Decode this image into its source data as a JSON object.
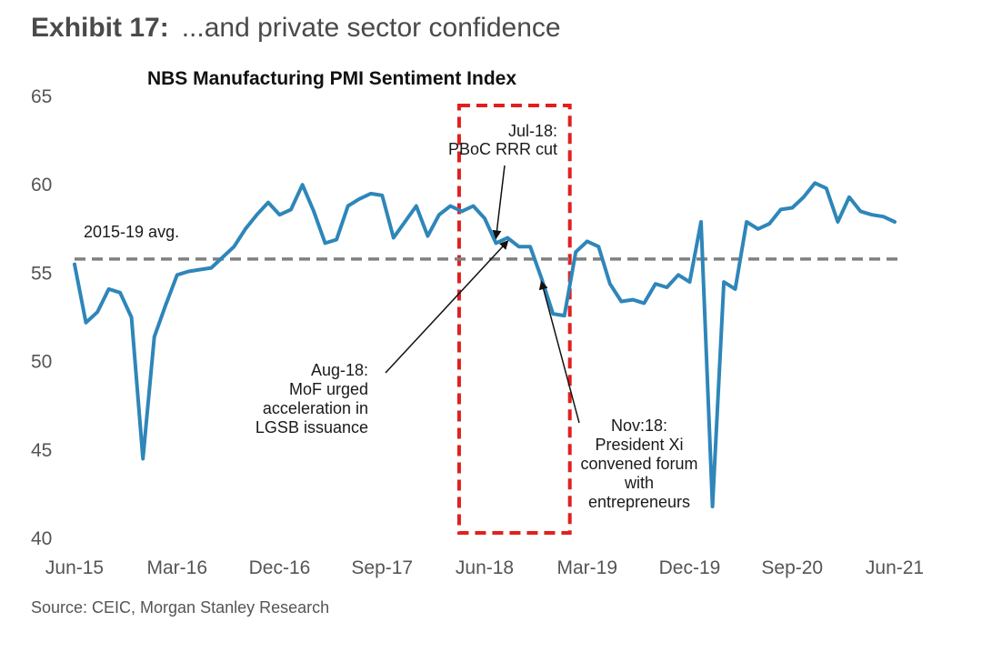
{
  "header": {
    "exhibit_label": "Exhibit 17:",
    "exhibit_title": "...and private sector confidence"
  },
  "source": "Source: CEIC, Morgan Stanley Research",
  "chart_data": {
    "type": "line",
    "title": "NBS Manufacturing PMI Sentiment Index",
    "xlabel": "",
    "ylabel": "",
    "ylim": [
      40,
      65
    ],
    "yticks": [
      40,
      45,
      50,
      55,
      60,
      65
    ],
    "xticks": [
      "Jun-15",
      "Mar-16",
      "Dec-16",
      "Sep-17",
      "Jun-18",
      "Mar-19",
      "Dec-19",
      "Sep-20",
      "Jun-21"
    ],
    "grid": false,
    "x": [
      "Jun-15",
      "Jul-15",
      "Aug-15",
      "Sep-15",
      "Oct-15",
      "Nov-15",
      "Dec-15",
      "Jan-16",
      "Feb-16",
      "Mar-16",
      "Apr-16",
      "May-16",
      "Jun-16",
      "Jul-16",
      "Aug-16",
      "Sep-16",
      "Oct-16",
      "Nov-16",
      "Dec-16",
      "Jan-17",
      "Feb-17",
      "Mar-17",
      "Apr-17",
      "May-17",
      "Jun-17",
      "Jul-17",
      "Aug-17",
      "Sep-17",
      "Oct-17",
      "Nov-17",
      "Dec-17",
      "Jan-18",
      "Feb-18",
      "Mar-18",
      "Apr-18",
      "May-18",
      "Jun-18",
      "Jul-18",
      "Aug-18",
      "Sep-18",
      "Oct-18",
      "Nov-18",
      "Dec-18",
      "Jan-19",
      "Feb-19",
      "Mar-19",
      "Apr-19",
      "May-19",
      "Jun-19",
      "Jul-19",
      "Aug-19",
      "Sep-19",
      "Oct-19",
      "Nov-19",
      "Dec-19",
      "Jan-20",
      "Feb-20",
      "Mar-20",
      "Apr-20",
      "May-20",
      "Jun-20",
      "Jul-20",
      "Aug-20",
      "Sep-20",
      "Oct-20",
      "Nov-20",
      "Dec-20",
      "Jan-21",
      "Feb-21",
      "Mar-21",
      "Apr-21",
      "May-21",
      "Jun-21"
    ],
    "series": [
      {
        "name": "",
        "color": "#2e86b9",
        "values": [
          55.5,
          52.2,
          52.8,
          54.1,
          53.9,
          52.5,
          44.5,
          51.4,
          53.2,
          54.9,
          55.1,
          55.2,
          55.3,
          55.9,
          56.5,
          57.5,
          58.3,
          59.0,
          58.3,
          58.6,
          60.0,
          58.5,
          56.7,
          56.9,
          58.8,
          59.2,
          59.5,
          59.4,
          57.0,
          57.9,
          58.8,
          57.1,
          58.3,
          58.8,
          58.5,
          58.8,
          58.1,
          56.7,
          57.0,
          56.5,
          56.5,
          54.7,
          52.7,
          52.6,
          56.2,
          56.8,
          56.5,
          54.4,
          53.4,
          53.5,
          53.3,
          54.4,
          54.2,
          54.9,
          54.5,
          57.9,
          41.8,
          54.5,
          54.1,
          57.9,
          57.5,
          57.8,
          58.6,
          58.7,
          59.3,
          60.1,
          59.8,
          57.9,
          59.3,
          58.5,
          58.3,
          58.2,
          57.9
        ]
      }
    ],
    "reference_line": {
      "label": "2015-19 avg.",
      "value": 55.8,
      "color": "#808080"
    },
    "highlight_box": {
      "from": "Apr-18",
      "to": "Jan-19",
      "y_from": 40,
      "y_to": 65,
      "color": "#e02020"
    },
    "annotations": [
      {
        "id": "jul18",
        "lines": [
          "Jul-18:",
          "PBoC RRR cut"
        ],
        "target": "Jul-18"
      },
      {
        "id": "aug18",
        "lines": [
          "Aug-18:",
          "MoF urged",
          "acceleration in",
          "LGSB issuance"
        ],
        "target": "Aug-18"
      },
      {
        "id": "nov18",
        "lines": [
          "Nov:18:",
          "President Xi",
          "convened forum",
          "with",
          "entrepreneurs"
        ],
        "target": "Nov-18"
      }
    ]
  }
}
